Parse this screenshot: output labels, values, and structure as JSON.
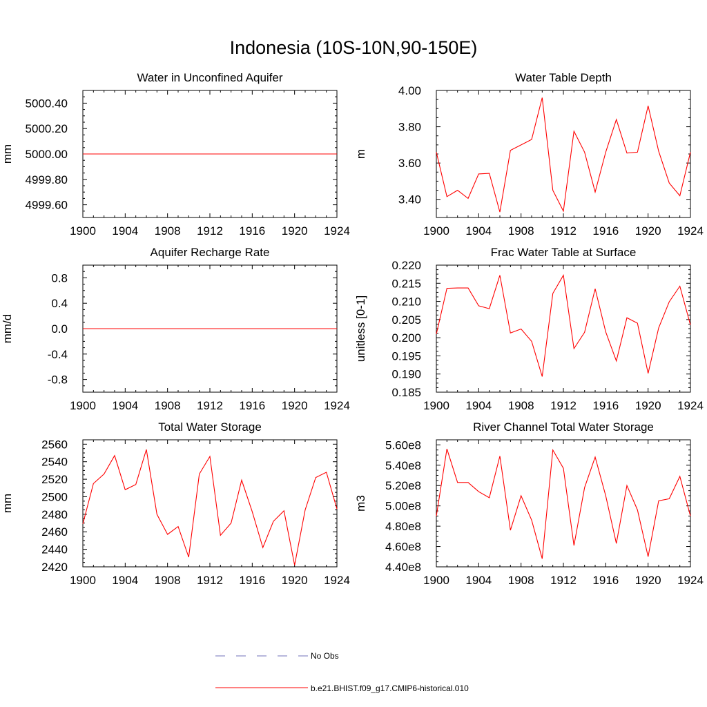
{
  "title": "Indonesia (10S-10N,90-150E)",
  "chart_data": [
    {
      "type": "line",
      "title": "Water in Unconfined Aquifer",
      "ylabel": "mm",
      "xlim": [
        1900,
        1924
      ],
      "ylim": [
        4999.5,
        5000.5
      ],
      "xticks": [
        "1900",
        "1904",
        "1908",
        "1912",
        "1916",
        "1920",
        "1924"
      ],
      "yticks": [
        {
          "v": 4999.6,
          "label": "4999.60"
        },
        {
          "v": 4999.8,
          "label": "4999.80"
        },
        {
          "v": 5000.0,
          "label": "5000.00"
        },
        {
          "v": 5000.2,
          "label": "5000.20"
        },
        {
          "v": 5000.4,
          "label": "5000.40"
        }
      ],
      "x": [
        1900,
        1924
      ],
      "series": [
        {
          "name": "b.e21.BHIST.f09_g17.CMIP6-historical.010",
          "color": "#ff0000",
          "values": [
            5000.0,
            5000.0
          ]
        }
      ]
    },
    {
      "type": "line",
      "title": "Water Table Depth",
      "ylabel": "m",
      "xlim": [
        1900,
        1924
      ],
      "ylim": [
        3.3,
        4.0
      ],
      "xticks": [
        "1900",
        "1904",
        "1908",
        "1912",
        "1916",
        "1920",
        "1924"
      ],
      "yticks": [
        {
          "v": 3.4,
          "label": "3.40"
        },
        {
          "v": 3.6,
          "label": "3.60"
        },
        {
          "v": 3.8,
          "label": "3.80"
        },
        {
          "v": 4.0,
          "label": "4.00"
        }
      ],
      "x": [
        1900,
        1901,
        1902,
        1903,
        1904,
        1905,
        1906,
        1907,
        1908,
        1909,
        1910,
        1911,
        1912,
        1913,
        1914,
        1915,
        1916,
        1917,
        1918,
        1919,
        1920,
        1921,
        1922,
        1923,
        1924
      ],
      "series": [
        {
          "name": "b.e21.BHIST.f09_g17.CMIP6-historical.010",
          "color": "#ff0000",
          "values": [
            3.66,
            3.415,
            3.45,
            3.405,
            3.54,
            3.543,
            3.33,
            3.67,
            3.7,
            3.73,
            3.96,
            3.45,
            3.335,
            3.775,
            3.66,
            3.44,
            3.66,
            3.84,
            3.655,
            3.66,
            3.915,
            3.665,
            3.49,
            3.42,
            3.66
          ]
        }
      ]
    },
    {
      "type": "line",
      "title": "Aquifer Recharge Rate",
      "ylabel": "mm/d",
      "xlim": [
        1900,
        1924
      ],
      "ylim": [
        -1.0,
        1.0
      ],
      "xticks": [
        "1900",
        "1904",
        "1908",
        "1912",
        "1916",
        "1920",
        "1924"
      ],
      "yticks": [
        {
          "v": -0.8,
          "label": "-0.8"
        },
        {
          "v": -0.4,
          "label": "-0.4"
        },
        {
          "v": 0.0,
          "label": "0.0"
        },
        {
          "v": 0.4,
          "label": "0.4"
        },
        {
          "v": 0.8,
          "label": "0.8"
        }
      ],
      "x": [
        1900,
        1924
      ],
      "series": [
        {
          "name": "b.e21.BHIST.f09_g17.CMIP6-historical.010",
          "color": "#ff0000",
          "values": [
            0.0,
            0.0
          ]
        }
      ]
    },
    {
      "type": "line",
      "title": "Frac Water Table at Surface",
      "ylabel": "unitless [0-1]",
      "xlim": [
        1900,
        1924
      ],
      "ylim": [
        0.185,
        0.22
      ],
      "xticks": [
        "1900",
        "1904",
        "1908",
        "1912",
        "1916",
        "1920",
        "1924"
      ],
      "yticks": [
        {
          "v": 0.185,
          "label": "0.185"
        },
        {
          "v": 0.19,
          "label": "0.190"
        },
        {
          "v": 0.195,
          "label": "0.195"
        },
        {
          "v": 0.2,
          "label": "0.200"
        },
        {
          "v": 0.205,
          "label": "0.205"
        },
        {
          "v": 0.21,
          "label": "0.210"
        },
        {
          "v": 0.215,
          "label": "0.215"
        },
        {
          "v": 0.22,
          "label": "0.220"
        }
      ],
      "x": [
        1900,
        1901,
        1902,
        1903,
        1904,
        1905,
        1906,
        1907,
        1908,
        1909,
        1910,
        1911,
        1912,
        1913,
        1914,
        1915,
        1916,
        1917,
        1918,
        1919,
        1920,
        1921,
        1922,
        1923,
        1924
      ],
      "series": [
        {
          "name": "b.e21.BHIST.f09_g17.CMIP6-historical.010",
          "color": "#ff0000",
          "values": [
            0.201,
            0.2136,
            0.2137,
            0.2137,
            0.2088,
            0.208,
            0.2172,
            0.2013,
            0.2024,
            0.199,
            0.1893,
            0.2122,
            0.2172,
            0.197,
            0.2015,
            0.2135,
            0.2016,
            0.1936,
            0.2055,
            0.204,
            0.1902,
            0.2027,
            0.2099,
            0.2142,
            0.2035
          ]
        }
      ]
    },
    {
      "type": "line",
      "title": "Total Water Storage",
      "ylabel": "mm",
      "xlim": [
        1900,
        1924
      ],
      "ylim": [
        2420,
        2565
      ],
      "xticks": [
        "1900",
        "1904",
        "1908",
        "1912",
        "1916",
        "1920",
        "1924"
      ],
      "yticks": [
        {
          "v": 2420,
          "label": "2420"
        },
        {
          "v": 2440,
          "label": "2440"
        },
        {
          "v": 2460,
          "label": "2460"
        },
        {
          "v": 2480,
          "label": "2480"
        },
        {
          "v": 2500,
          "label": "2500"
        },
        {
          "v": 2520,
          "label": "2520"
        },
        {
          "v": 2540,
          "label": "2540"
        },
        {
          "v": 2560,
          "label": "2560"
        }
      ],
      "x": [
        1900,
        1901,
        1902,
        1903,
        1904,
        1905,
        1906,
        1907,
        1908,
        1909,
        1910,
        1911,
        1912,
        1913,
        1914,
        1915,
        1916,
        1917,
        1918,
        1919,
        1920,
        1921,
        1922,
        1923,
        1924
      ],
      "series": [
        {
          "name": "b.e21.BHIST.f09_g17.CMIP6-historical.010",
          "color": "#ff0000",
          "values": [
            2469,
            2515,
            2526,
            2547,
            2508,
            2514,
            2554,
            2480,
            2457,
            2466,
            2431,
            2526,
            2546,
            2456,
            2470,
            2519,
            2483,
            2442,
            2472,
            2484,
            2422,
            2485,
            2522,
            2528,
            2486
          ]
        }
      ]
    },
    {
      "type": "line",
      "title": "River Channel Total Water Storage",
      "ylabel": "m3",
      "xlim": [
        1900,
        1924
      ],
      "ylim": [
        440000000.0,
        565000000.0
      ],
      "xticks": [
        "1900",
        "1904",
        "1908",
        "1912",
        "1916",
        "1920",
        "1924"
      ],
      "yticks": [
        {
          "v": 440000000.0,
          "label": "4.40e8"
        },
        {
          "v": 460000000.0,
          "label": "4.60e8"
        },
        {
          "v": 480000000.0,
          "label": "4.80e8"
        },
        {
          "v": 500000000.0,
          "label": "5.00e8"
        },
        {
          "v": 520000000.0,
          "label": "5.20e8"
        },
        {
          "v": 540000000.0,
          "label": "5.40e8"
        },
        {
          "v": 560000000.0,
          "label": "5.60e8"
        }
      ],
      "x": [
        1900,
        1901,
        1902,
        1903,
        1904,
        1905,
        1906,
        1907,
        1908,
        1909,
        1910,
        1911,
        1912,
        1913,
        1914,
        1915,
        1916,
        1917,
        1918,
        1919,
        1920,
        1921,
        1922,
        1923,
        1924
      ],
      "series": [
        {
          "name": "b.e21.BHIST.f09_g17.CMIP6-historical.010",
          "color": "#ff0000",
          "values": [
            490000000.0,
            556000000.0,
            523000000.0,
            523000000.0,
            514000000.0,
            508000000.0,
            549000000.0,
            476000000.0,
            510000000.0,
            486000000.0,
            448000000.0,
            555000000.0,
            537000000.0,
            461000000.0,
            518000000.0,
            548000000.0,
            510000000.0,
            463000000.0,
            520000000.0,
            496000000.0,
            450000000.0,
            505000000.0,
            507000000.0,
            529000000.0,
            490000000.0
          ]
        }
      ]
    }
  ],
  "legend": [
    {
      "label": "No Obs",
      "color": "#6f6fb8",
      "dash": true
    },
    {
      "label": "b.e21.BHIST.f09_g17.CMIP6-historical.010",
      "color": "#ff0000",
      "dash": false
    }
  ]
}
